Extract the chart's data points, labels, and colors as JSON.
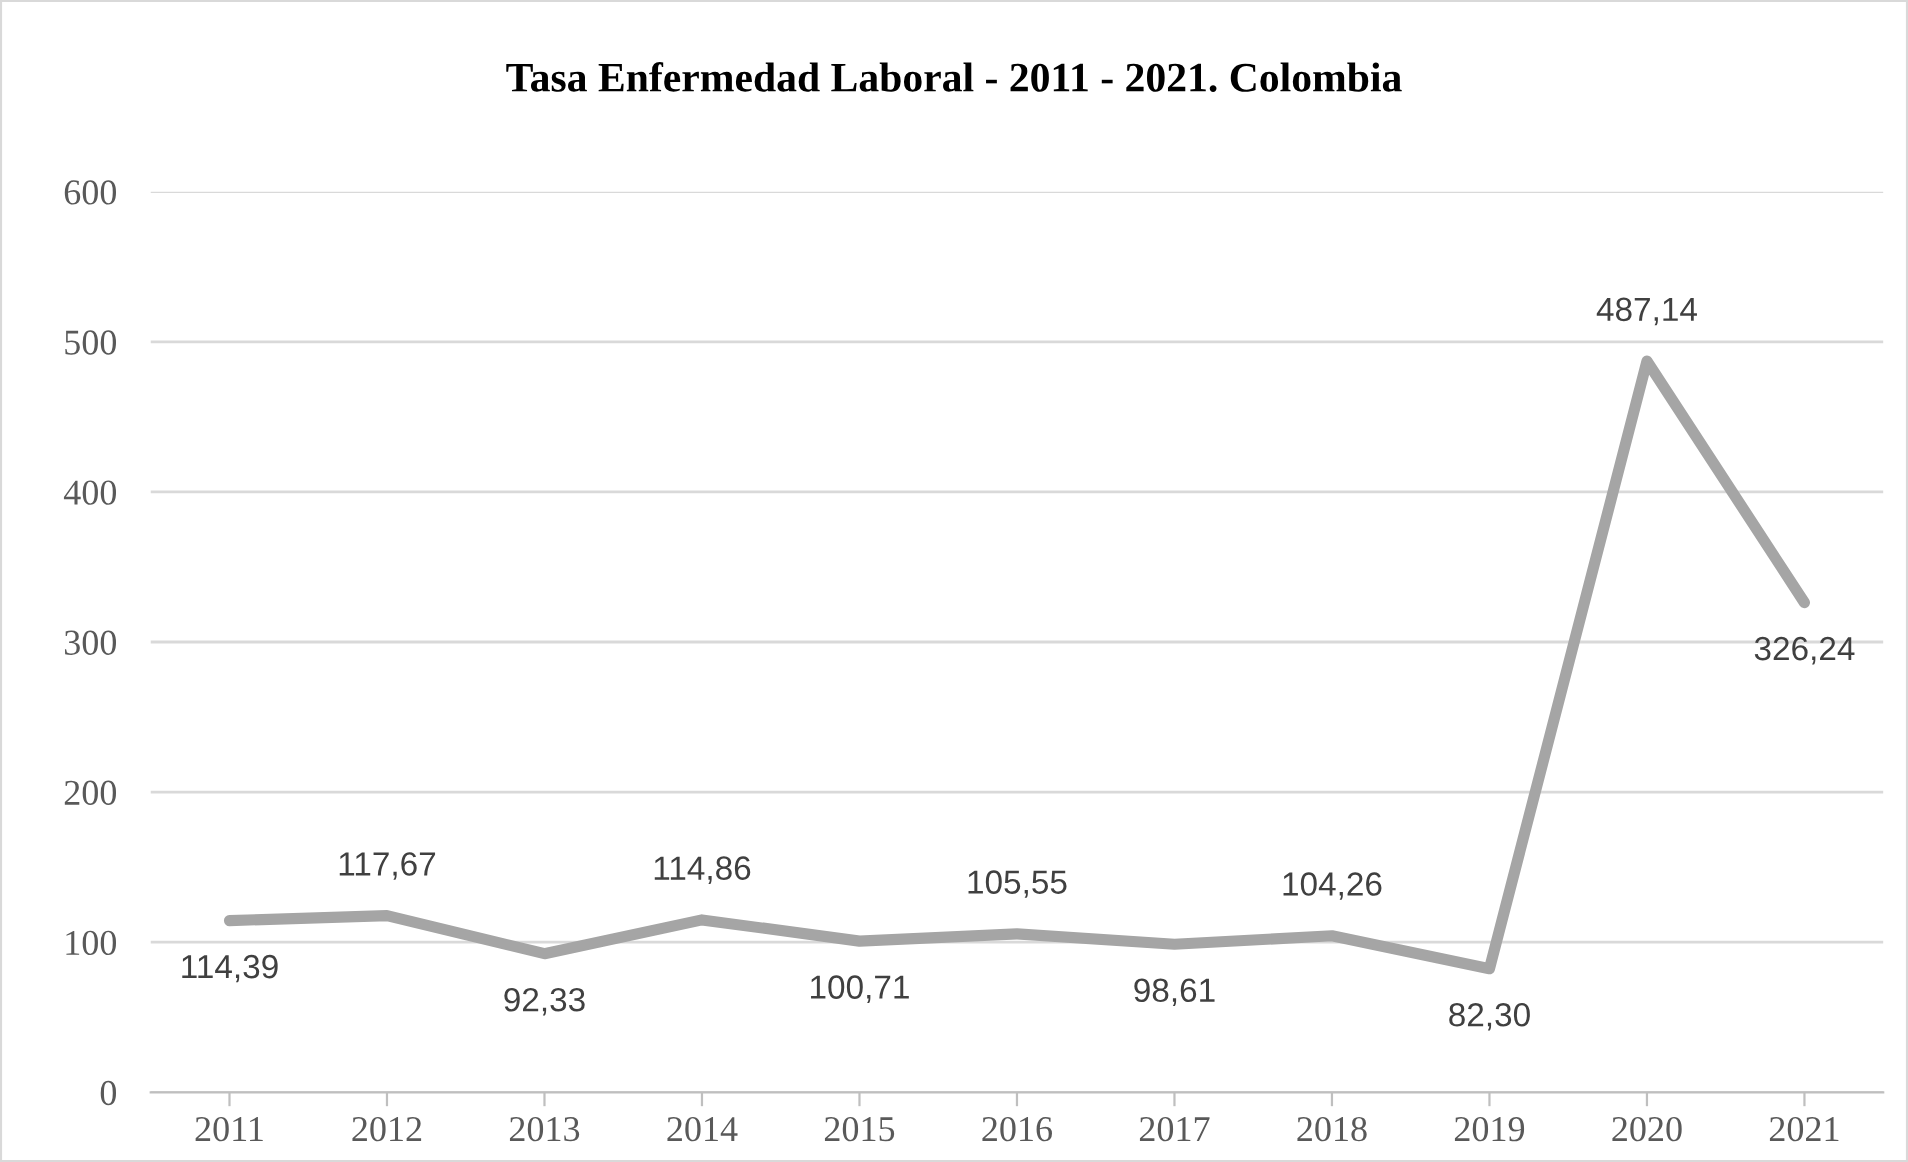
{
  "chart_data": {
    "type": "line",
    "title": "Tasa Enfermedad Laboral - 2011 - 2021. Colombia",
    "categories": [
      "2011",
      "2012",
      "2013",
      "2014",
      "2015",
      "2016",
      "2017",
      "2018",
      "2019",
      "2020",
      "2021"
    ],
    "series": [
      {
        "color": "#a5a5a5",
        "values": [
          114.39,
          117.67,
          92.33,
          114.86,
          100.71,
          105.55,
          98.61,
          104.26,
          82.3,
          487.14,
          326.24
        ],
        "value_labels": [
          "114,39",
          "117,67",
          "92,33",
          "114,86",
          "100,71",
          "105,55",
          "98,61",
          "104,26",
          "82,30",
          "487,14",
          "326,24"
        ]
      }
    ],
    "ylim": [
      0,
      600
    ],
    "yticks": [
      0,
      100,
      200,
      300,
      400,
      500,
      600
    ],
    "grid": "y",
    "legend": false,
    "marker": "none",
    "line_style": "solid"
  }
}
